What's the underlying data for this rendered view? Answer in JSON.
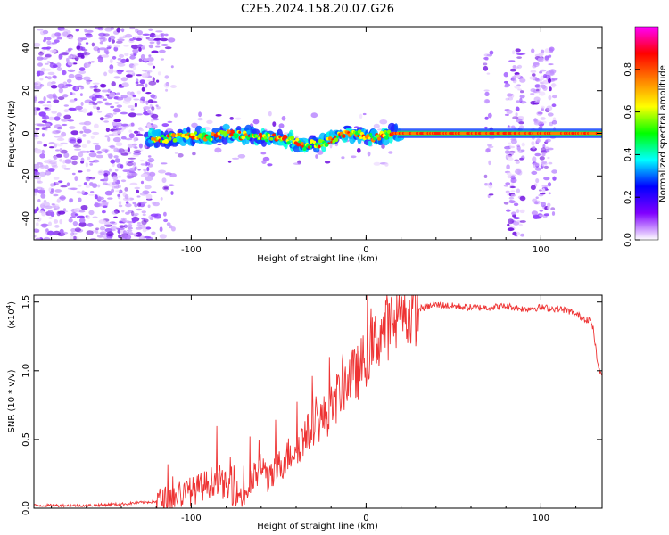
{
  "title": "C2E5.2024.158.20.07.G26",
  "chart_data": [
    {
      "type": "heatmap",
      "xlabel": "Height of straight line (km)",
      "ylabel": "Frequency (Hz)",
      "xlim": [
        -190,
        135
      ],
      "ylim": [
        -50,
        50
      ],
      "xticks": [
        "-100",
        "0",
        "100"
      ],
      "yticks": [
        "-40",
        "-20",
        "0",
        "20",
        "40"
      ],
      "colorbar": {
        "label": "Normalized spectral amplitude",
        "range": [
          0,
          1
        ],
        "ticks": [
          "0.0",
          "0.2",
          "0.4",
          "0.6",
          "0.8"
        ],
        "colormap": [
          "#ffffff",
          "#8000ff",
          "#0000ff",
          "#00ffff",
          "#00ff00",
          "#ffff00",
          "#ff8000",
          "#ff0000",
          "#ff00ff"
        ]
      },
      "ridge": {
        "x": [
          -125,
          -110,
          -100,
          -90,
          -80,
          -70,
          -60,
          -50,
          -40,
          -35,
          -30,
          -25,
          -20,
          -15,
          -10,
          -5,
          0,
          5,
          10,
          15,
          20,
          40,
          60,
          80,
          100,
          120,
          135
        ],
        "y": [
          -3,
          -2,
          -1,
          -2,
          0,
          -1,
          -2,
          -2,
          -4,
          -6,
          -5,
          -5,
          -3,
          -1,
          0,
          0,
          -2,
          -2,
          -1,
          0,
          0,
          0,
          0,
          0,
          0,
          0,
          0
        ]
      }
    },
    {
      "type": "line",
      "xlabel": "Height of straight line (km)",
      "ylabel": "SNR (10 * v/v)",
      "yscale_label": "(x10",
      "yscale_exp": "4",
      "xlim": [
        -190,
        135
      ],
      "ylim": [
        0,
        1.55
      ],
      "xticks": [
        "-100",
        "0",
        "100"
      ],
      "yticks": [
        "0.0",
        "0.5",
        "1.0",
        "1.5"
      ],
      "color": "#ee3333",
      "series": [
        {
          "x": [
            -190,
            -160,
            -140,
            -130,
            -120,
            -110,
            -100,
            -90,
            -85,
            -80,
            -75,
            -70,
            -65,
            -60,
            -55,
            -50,
            -45,
            -40,
            -35,
            -30,
            -25,
            -20,
            -15,
            -10,
            -5,
            0,
            5,
            10,
            20,
            30,
            40,
            50,
            60,
            70,
            80,
            90,
            100,
            110,
            115,
            120,
            125,
            128,
            130,
            133,
            135
          ],
          "y": [
            0.02,
            0.02,
            0.03,
            0.04,
            0.05,
            0.08,
            0.12,
            0.18,
            0.22,
            0.15,
            0.12,
            0.08,
            0.2,
            0.3,
            0.2,
            0.3,
            0.38,
            0.45,
            0.5,
            0.62,
            0.65,
            0.72,
            0.85,
            0.95,
            0.98,
            1.1,
            1.2,
            1.3,
            1.38,
            1.45,
            1.48,
            1.47,
            1.46,
            1.46,
            1.47,
            1.45,
            1.46,
            1.45,
            1.44,
            1.41,
            1.38,
            1.37,
            1.3,
            1.0,
            0.98
          ]
        }
      ]
    }
  ]
}
